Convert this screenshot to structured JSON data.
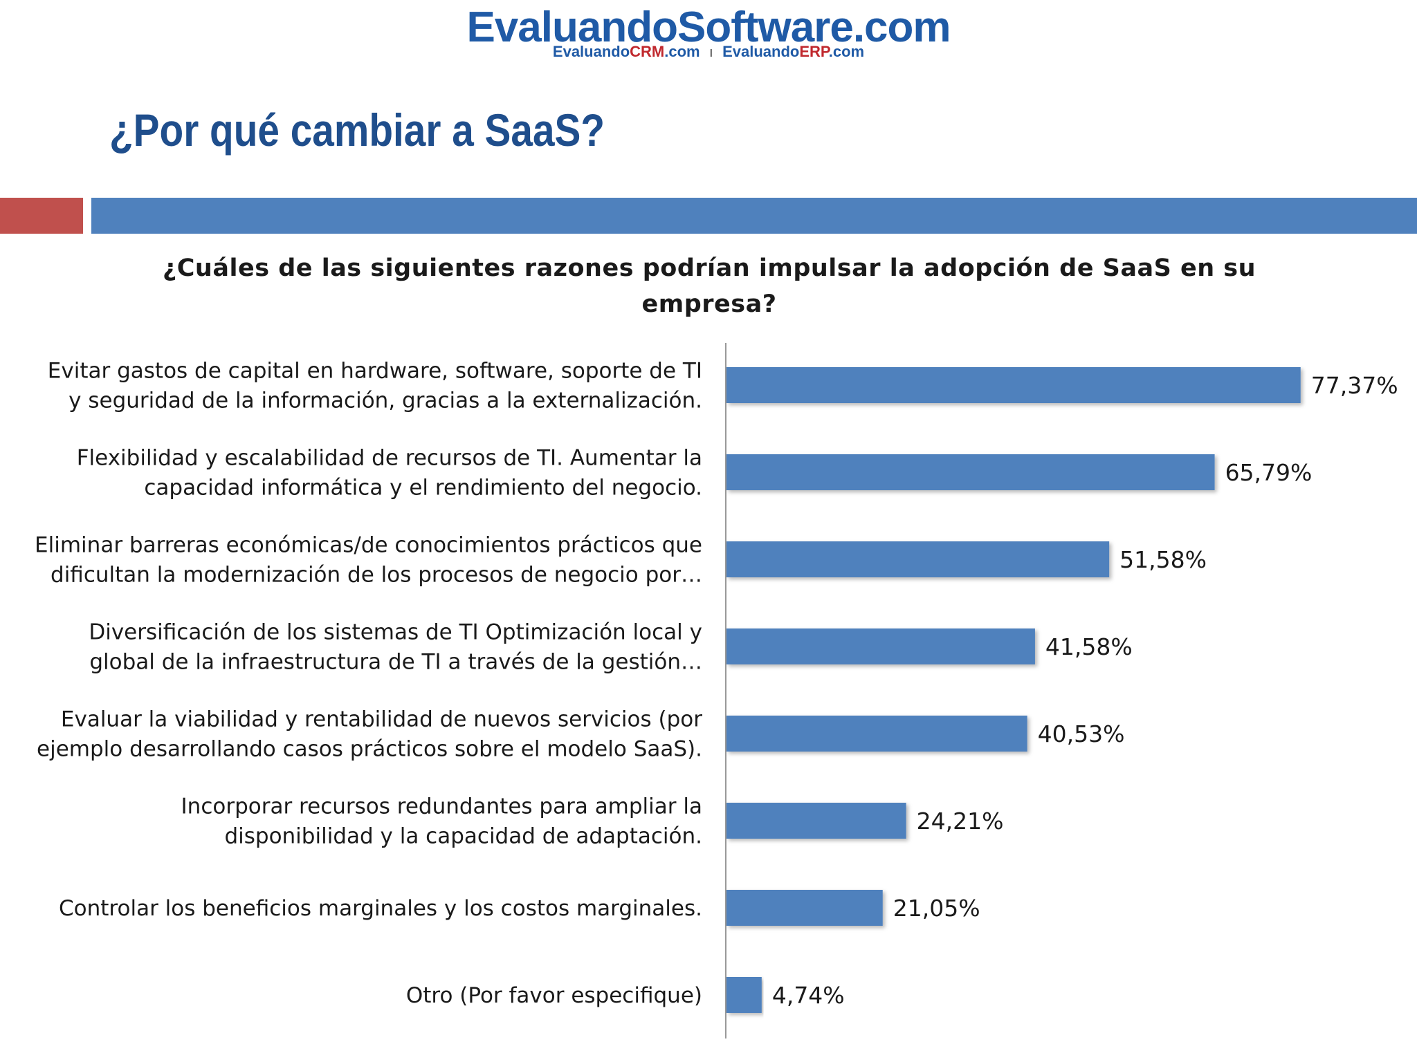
{
  "logo": {
    "main_a": "Evaluando",
    "main_b": "Software",
    "main_c": ".com",
    "sub_left_a": "Evaluando",
    "sub_left_b": "CRM",
    "sub_left_c": ".com",
    "sub_sep": "I",
    "sub_right_a": "Evaluando",
    "sub_right_b": "ERP",
    "sub_right_c": ".com"
  },
  "slide": {
    "title": "¿Por qué cambiar a SaaS?",
    "question_line1": "¿Cuáles de las siguientes razones podrían impulsar la adopción de SaaS en su",
    "question_line2": "empresa?",
    "band_colors": {
      "red": "#c0504d",
      "blue": "#4f81bd"
    }
  },
  "chart_data": {
    "type": "bar",
    "orientation": "horizontal",
    "bar_color": "#4f81bd",
    "categories": [
      [
        "Evitar gastos de capital en hardware, software, soporte de TI",
        "y seguridad de la información, gracias a la externalización."
      ],
      [
        "Flexibilidad y escalabilidad de recursos de TI. Aumentar la",
        "capacidad informática y el rendimiento del negocio."
      ],
      [
        "Eliminar barreras económicas/de conocimientos prácticos que",
        "dificultan la modernización de los procesos de negocio por…"
      ],
      [
        "Diversificación de los sistemas de TI Optimización local y",
        "global de la infraestructura de TI a través de la gestión…"
      ],
      [
        "Evaluar la viabilidad y rentabilidad de nuevos servicios (por",
        "ejemplo desarrollando casos prácticos sobre el modelo SaaS)."
      ],
      [
        "Incorporar recursos redundantes para ampliar la",
        "disponibilidad y la capacidad de adaptación."
      ],
      [
        "Controlar los beneficios marginales y los costos marginales."
      ],
      [
        "Otro (Por favor especifique)"
      ]
    ],
    "values": [
      77.37,
      65.79,
      51.58,
      41.58,
      40.53,
      24.21,
      21.05,
      4.74
    ],
    "value_labels": [
      "77,37%",
      "65,79%",
      "51,58%",
      "41,58%",
      "40,53%",
      "24,21%",
      "21,05%",
      "4,74%"
    ],
    "xlim": [
      0,
      100
    ],
    "grid": false,
    "legend": "none"
  }
}
